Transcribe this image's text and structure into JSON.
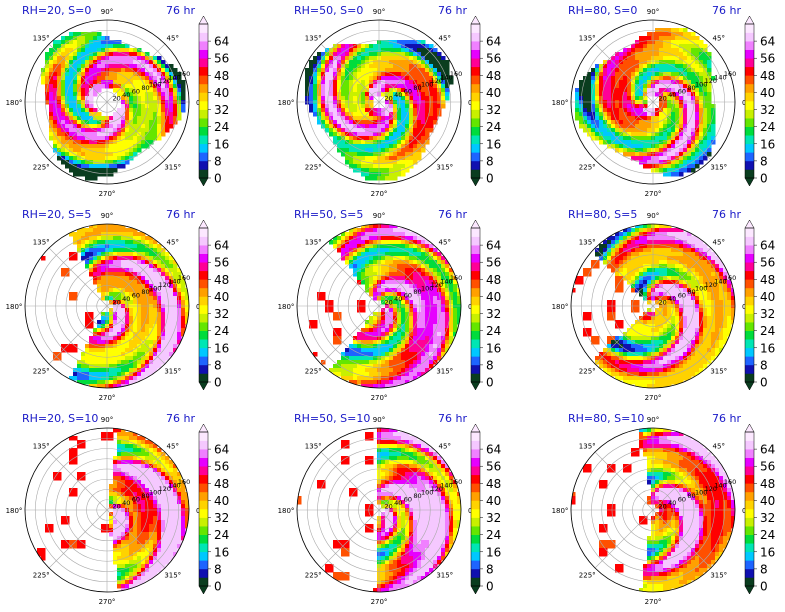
{
  "chart_data": {
    "type": "heatmap",
    "projection": "polar",
    "panels": [
      {
        "title": "RH=20, S=0",
        "time": "76 hr",
        "rh": 20,
        "s": 0
      },
      {
        "title": "RH=50, S=0",
        "time": "76 hr",
        "rh": 50,
        "s": 0
      },
      {
        "title": "RH=80, S=0",
        "time": "76 hr",
        "rh": 80,
        "s": 0
      },
      {
        "title": "RH=20, S=5",
        "time": "76 hr",
        "rh": 20,
        "s": 5
      },
      {
        "title": "RH=50, S=5",
        "time": "76 hr",
        "rh": 50,
        "s": 5
      },
      {
        "title": "RH=80, S=5",
        "time": "76 hr",
        "rh": 80,
        "s": 5
      },
      {
        "title": "RH=20, S=10",
        "time": "76 hr",
        "rh": 20,
        "s": 10
      },
      {
        "title": "RH=50, S=10",
        "time": "76 hr",
        "rh": 50,
        "s": 10
      },
      {
        "title": "RH=80, S=10",
        "time": "76 hr",
        "rh": 80,
        "s": 10
      }
    ],
    "angular_ticks": [
      "90°",
      "45°",
      "0°",
      "315°",
      "270°",
      "225°",
      "180°",
      "135°"
    ],
    "angular_tick_values": [
      90,
      45,
      0,
      315,
      270,
      225,
      180,
      135
    ],
    "radial_ticks": [
      "20",
      "40",
      "60",
      "80",
      "100",
      "120",
      "140",
      "160"
    ],
    "radial_tick_values": [
      20,
      40,
      60,
      80,
      100,
      120,
      140,
      160
    ],
    "radial_max": 160,
    "colorbar": {
      "ticks": [
        "0",
        "8",
        "16",
        "24",
        "32",
        "40",
        "48",
        "56",
        "64"
      ],
      "levels": [
        0,
        4,
        8,
        12,
        16,
        20,
        24,
        28,
        32,
        36,
        40,
        44,
        48,
        52,
        56,
        60,
        64,
        68
      ],
      "colors": [
        "#0a3d1f",
        "#1010b0",
        "#1e64ff",
        "#00c8ff",
        "#00e6b4",
        "#00dc3c",
        "#64e600",
        "#c8f000",
        "#ffff00",
        "#ffd200",
        "#ffa000",
        "#ff5000",
        "#ff0000",
        "#ff0096",
        "#e600ff",
        "#f080ff",
        "#f5c8ff",
        "#fce8ff"
      ]
    }
  }
}
